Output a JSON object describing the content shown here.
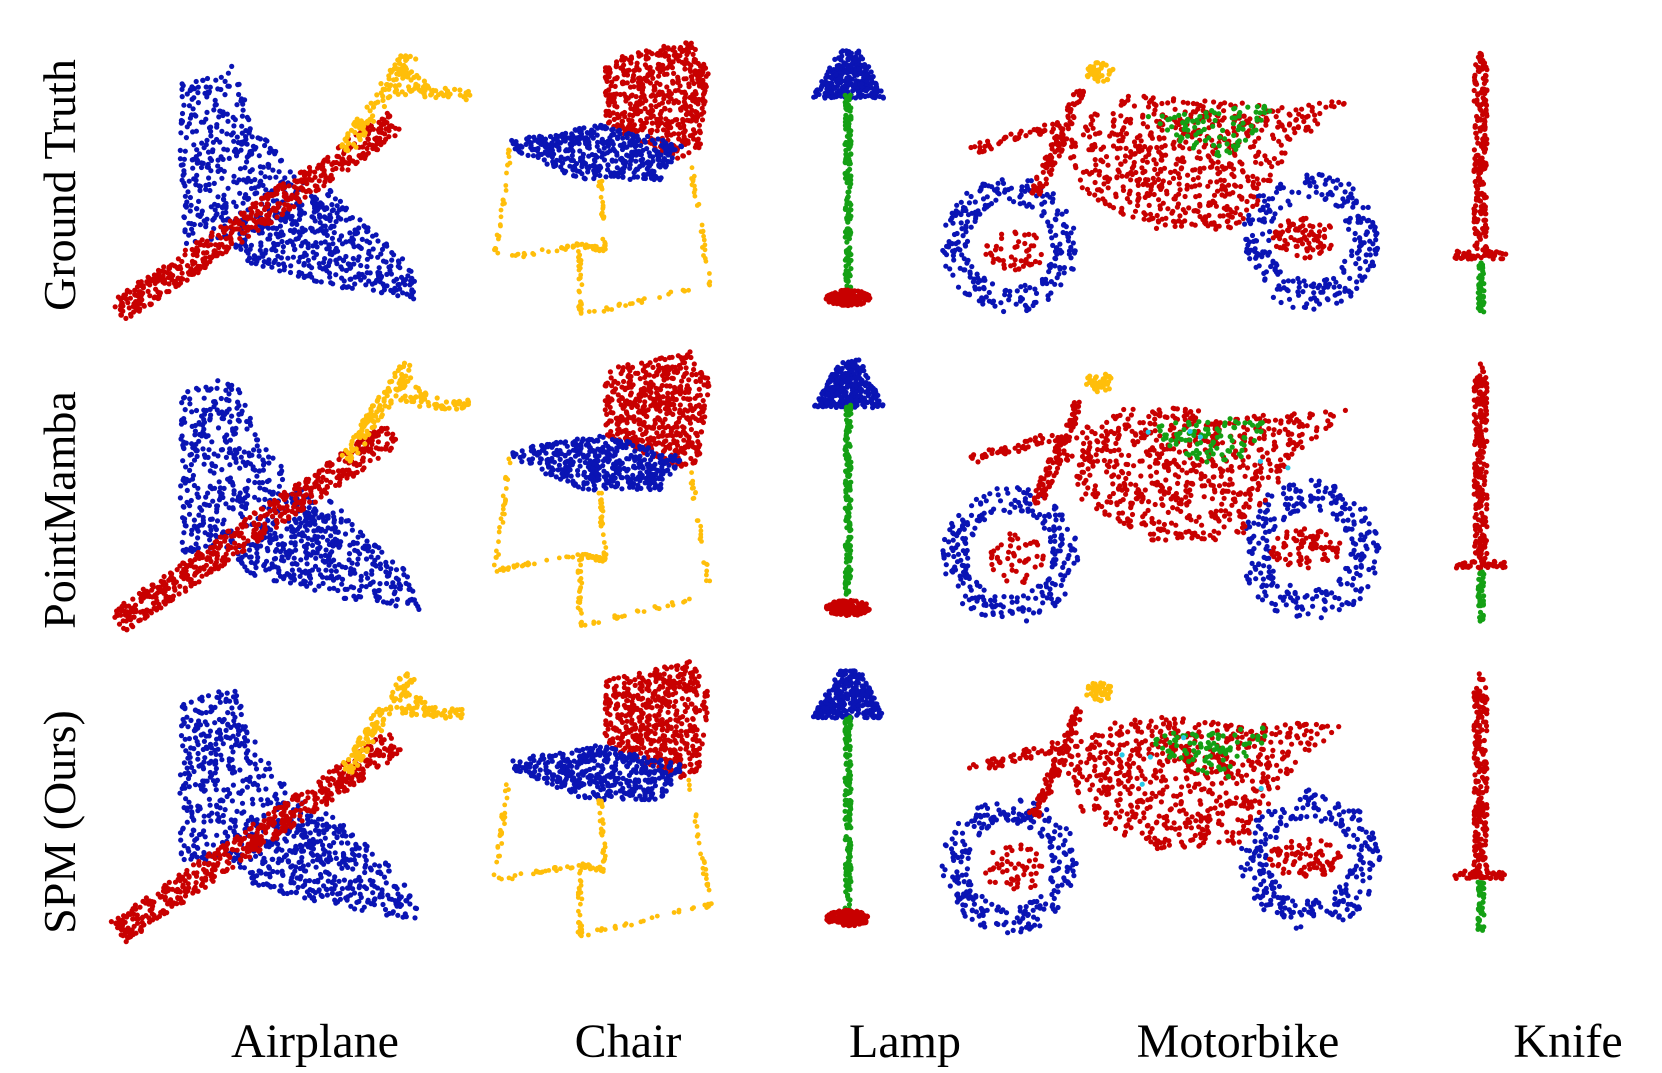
{
  "rows": [
    {
      "label": "Ground Truth"
    },
    {
      "label": "PointMamba"
    },
    {
      "label": "SPM (Ours)"
    }
  ],
  "columns": [
    {
      "label": "Airplane"
    },
    {
      "label": "Chair"
    },
    {
      "label": "Lamp"
    },
    {
      "label": "Motorbike"
    },
    {
      "label": "Knife"
    }
  ],
  "part_colors": {
    "red": "#c80000",
    "blue": "#0a14b4",
    "yellow": "#ffbe0a",
    "green": "#14a014",
    "cyan": "#28c8e6"
  }
}
